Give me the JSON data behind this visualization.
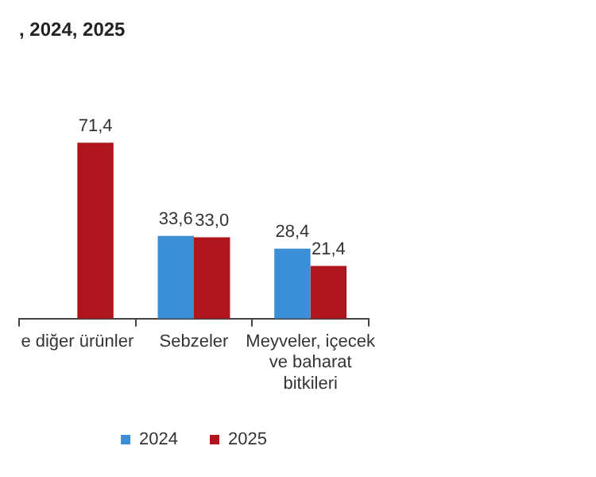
{
  "chart_data": {
    "type": "bar",
    "title": ", 2024, 2025",
    "categories": [
      "e diğer ürünler",
      "Sebzeler",
      "Meyveler, içecek ve baharat bitkileri"
    ],
    "series": [
      {
        "name": "2024",
        "color": "#3a8fd6",
        "values": [
          null,
          33.6,
          28.4
        ],
        "value_labels": [
          null,
          "33,6",
          "28,4"
        ]
      },
      {
        "name": "2025",
        "color": "#b0141c",
        "values": [
          71.4,
          33.0,
          21.4
        ],
        "value_labels": [
          "71,4",
          "33,0",
          "21,4"
        ]
      }
    ],
    "grid": false,
    "legend": "bottom"
  }
}
